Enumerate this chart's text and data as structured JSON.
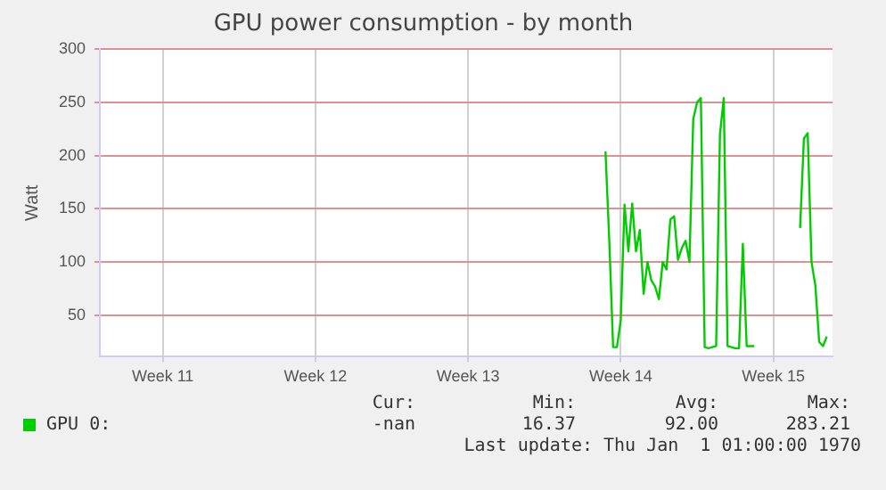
{
  "chart_data": {
    "type": "line",
    "title": "GPU power consumption - by month",
    "ylabel": "Watt",
    "categories": [
      null,
      null,
      null,
      null,
      null,
      null,
      null,
      null,
      null,
      null,
      null,
      null,
      null,
      null,
      null,
      null,
      "Week 11",
      null,
      null,
      null,
      null,
      null,
      null,
      null,
      null,
      null,
      null,
      null,
      null,
      null,
      null,
      null,
      null,
      null,
      null,
      null,
      null,
      null,
      null,
      null,
      null,
      null,
      null,
      null,
      null,
      null,
      null,
      null,
      null,
      null,
      null,
      null,
      null,
      null,
      null,
      null,
      "Week 12",
      null,
      null,
      null,
      null,
      null,
      null,
      null,
      null,
      null,
      null,
      null,
      null,
      null,
      null,
      null,
      null,
      null,
      null,
      null,
      null,
      null,
      null,
      null,
      null,
      null,
      null,
      null,
      null,
      null,
      null,
      null,
      null,
      null,
      null,
      null,
      null,
      null,
      null,
      null,
      "Week 13",
      null,
      null,
      null,
      null,
      null,
      null,
      null,
      null,
      null,
      null,
      null,
      null,
      null,
      null,
      null,
      null,
      null,
      null,
      null,
      null,
      null,
      null,
      null,
      null,
      null,
      null,
      null,
      null,
      null,
      null,
      null,
      null,
      null,
      null,
      null,
      null,
      null,
      null,
      null,
      "Week 14",
      null,
      null,
      null,
      null,
      null,
      null,
      null,
      null,
      null,
      null,
      null,
      null,
      null,
      null,
      null,
      null,
      null,
      null,
      null,
      null,
      null,
      null,
      null,
      null,
      null,
      null,
      null,
      null,
      null,
      null,
      null,
      null,
      null,
      null,
      null,
      null,
      null,
      null,
      null,
      "Week 15",
      null,
      null,
      null,
      null,
      null,
      null,
      null,
      null,
      null,
      null,
      null,
      null,
      null,
      null,
      null
    ],
    "series": [
      {
        "name": "GPU 0:",
        "color": "#00cc00",
        "values": [
          null,
          null,
          null,
          null,
          null,
          null,
          null,
          null,
          null,
          null,
          null,
          null,
          null,
          null,
          null,
          null,
          null,
          null,
          null,
          null,
          null,
          null,
          null,
          null,
          null,
          null,
          null,
          null,
          null,
          null,
          null,
          null,
          null,
          null,
          null,
          null,
          null,
          null,
          null,
          null,
          null,
          null,
          null,
          null,
          null,
          null,
          null,
          null,
          null,
          null,
          null,
          null,
          null,
          null,
          null,
          null,
          null,
          null,
          null,
          null,
          null,
          null,
          null,
          null,
          null,
          null,
          null,
          null,
          null,
          null,
          null,
          null,
          null,
          null,
          null,
          null,
          null,
          null,
          null,
          null,
          null,
          null,
          null,
          null,
          null,
          null,
          null,
          null,
          null,
          null,
          null,
          null,
          null,
          null,
          null,
          null,
          null,
          null,
          null,
          null,
          null,
          null,
          null,
          null,
          null,
          null,
          null,
          null,
          null,
          null,
          null,
          null,
          null,
          null,
          null,
          null,
          null,
          null,
          null,
          null,
          null,
          null,
          null,
          null,
          null,
          null,
          null,
          null,
          null,
          null,
          null,
          null,
          204,
          120,
          20,
          20,
          45,
          154,
          110,
          155,
          110,
          130,
          70,
          100,
          83,
          77,
          65,
          100,
          93,
          140,
          143,
          102,
          113,
          120,
          100,
          234,
          250,
          254,
          20,
          19,
          20,
          21,
          220,
          254,
          21,
          20,
          19,
          19,
          117,
          21,
          21,
          21,
          null,
          null,
          null,
          null,
          null,
          null,
          null,
          null,
          null,
          null,
          null,
          132,
          216,
          221,
          100,
          78,
          25,
          21,
          30,
          null
        ]
      }
    ],
    "ylim": [
      11,
      300
    ],
    "yticks": [
      50,
      100,
      150,
      200,
      250,
      300
    ],
    "grid": true,
    "legend": "bottom left",
    "marker": "none",
    "line_style": "solid",
    "annotations": [
      "Cur:",
      "Min:",
      "Avg:",
      "Max:",
      "-nan",
      "16.37",
      "92.00",
      "283.21",
      "Last update: Thu Jan  1 01:00:00 1970"
    ]
  }
}
